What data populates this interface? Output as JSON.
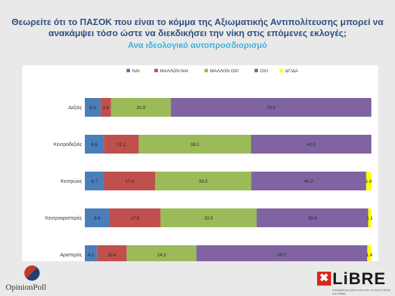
{
  "title_line1": "Θεωρείτε ότι το ΠΑΣΟΚ που είναι το κόμμα της Αξιωματικής Αντιπολίτευσης μπορεί να",
  "title_line2": "ανακάμψει τόσο ώστε να διεκδικήσει την νίκη στις επόμενες εκλογές;",
  "subtitle": "Ανα ιδεολογικό αυτοπροσδιορισμό",
  "logo_left": "OpinionPoll",
  "logo_right": "LiBRE",
  "logo_right_tagline": "ΕΦΗΜΕΡΙΔΑ ΧΩΡΙΣ ΑΓΚΥΡΑ, ΣΤΟΧΟΣ ΠΕΡΑ ΚΑΙ ΠΑΝΩ...",
  "chart_data": {
    "type": "bar",
    "orientation": "horizontal",
    "stacked": true,
    "normalized": true,
    "legend_position": "top",
    "categories": [
      "Δεξιός",
      "Κεντροδεξιός",
      "Κεντρώος",
      "Κεντροαριστερός",
      "Αριστερός"
    ],
    "series": [
      {
        "name": "ΝΑΙ",
        "color": "#4a7ebb",
        "values": [
          5.5,
          6.6,
          6.7,
          8.6,
          4.2
        ]
      },
      {
        "name": "ΜΑΛΛΟΝ ΝΑΙ",
        "color": "#c0504d",
        "values": [
          3.6,
          12.2,
          17.9,
          17.8,
          10.4
        ]
      },
      {
        "name": "ΜΑΛΛΟΝ ΟΧΙ",
        "color": "#9bbb59",
        "values": [
          20.9,
          39.2,
          33.5,
          33.5,
          24.3
        ]
      },
      {
        "name": "ΟΧΙ",
        "color": "#8064a2",
        "values": [
          70.0,
          42.0,
          40.2,
          38.9,
          59.7
        ]
      },
      {
        "name": "ΔΓ/ΔΑ",
        "color": "#ffff00",
        "values": [
          null,
          null,
          1.8,
          1.1,
          1.4
        ]
      }
    ]
  }
}
